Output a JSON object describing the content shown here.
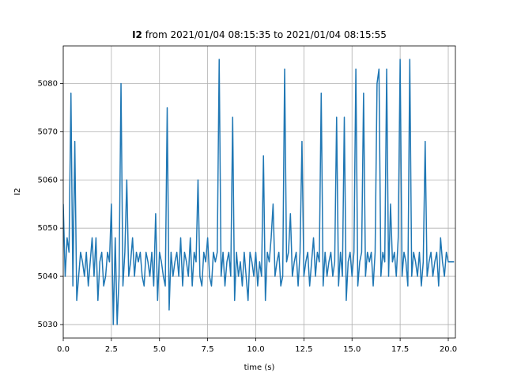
{
  "chart_data": {
    "type": "line",
    "title": {
      "bold": "I2",
      "rest": "from 2021/01/04 08:15:35 to 2021/01/04 08:15:55"
    },
    "xlabel": "time (s)",
    "ylabel": "I2",
    "xlim": [
      0,
      20.37
    ],
    "ylim": [
      5027.2,
      5087.8
    ],
    "xticks": [
      {
        "value": 0,
        "label": "0.0"
      },
      2.5,
      {
        "value": 5,
        "label": "5.0"
      },
      7.5,
      {
        "value": 10,
        "label": "10.0"
      },
      12.5,
      {
        "value": 15,
        "label": "15.0"
      },
      17.5,
      {
        "value": 20,
        "label": "20.0"
      }
    ],
    "yticks": [
      5030,
      5040,
      5050,
      5060,
      5070,
      5080
    ],
    "grid": true,
    "x": [
      0,
      0.1,
      0.2,
      0.3,
      0.4,
      0.5,
      0.6,
      0.7,
      0.8,
      0.9,
      1,
      1.1,
      1.2,
      1.3,
      1.4,
      1.5,
      1.6,
      1.7,
      1.8,
      1.9,
      2,
      2.1,
      2.2,
      2.3,
      2.4,
      2.5,
      2.6,
      2.7,
      2.8,
      2.9,
      3,
      3.1,
      3.2,
      3.3,
      3.4,
      3.5,
      3.6,
      3.7,
      3.8,
      3.9,
      4,
      4.1,
      4.2,
      4.3,
      4.4,
      4.5,
      4.6,
      4.7,
      4.8,
      4.9,
      5,
      5.1,
      5.2,
      5.3,
      5.4,
      5.5,
      5.6,
      5.7,
      5.8,
      5.9,
      6,
      6.1,
      6.2,
      6.3,
      6.4,
      6.5,
      6.6,
      6.7,
      6.8,
      6.9,
      7,
      7.1,
      7.2,
      7.3,
      7.4,
      7.5,
      7.6,
      7.7,
      7.8,
      7.9,
      8,
      8.1,
      8.2,
      8.3,
      8.4,
      8.5,
      8.6,
      8.7,
      8.8,
      8.9,
      9,
      9.1,
      9.2,
      9.3,
      9.4,
      9.5,
      9.6,
      9.7,
      9.8,
      9.9,
      10,
      10.1,
      10.2,
      10.3,
      10.4,
      10.5,
      10.6,
      10.7,
      10.8,
      10.9,
      11,
      11.1,
      11.2,
      11.3,
      11.4,
      11.5,
      11.6,
      11.7,
      11.8,
      11.9,
      12,
      12.1,
      12.2,
      12.3,
      12.4,
      12.5,
      12.6,
      12.7,
      12.8,
      12.9,
      13,
      13.1,
      13.2,
      13.3,
      13.4,
      13.5,
      13.6,
      13.7,
      13.8,
      13.9,
      14,
      14.1,
      14.2,
      14.3,
      14.4,
      14.5,
      14.6,
      14.7,
      14.8,
      14.9,
      15,
      15.1,
      15.2,
      15.3,
      15.4,
      15.5,
      15.6,
      15.7,
      15.8,
      15.9,
      16,
      16.1,
      16.2,
      16.3,
      16.4,
      16.5,
      16.6,
      16.7,
      16.8,
      16.9,
      17,
      17.1,
      17.2,
      17.3,
      17.4,
      17.5,
      17.6,
      17.7,
      17.8,
      17.9,
      18,
      18.1,
      18.2,
      18.3,
      18.4,
      18.5,
      18.6,
      18.7,
      18.8,
      18.9,
      19,
      19.1,
      19.2,
      19.3,
      19.4,
      19.5,
      19.6,
      19.7,
      19.8,
      19.9,
      20,
      20.1,
      20.2,
      20.3
    ],
    "series": [
      {
        "color": "#1f77b4",
        "values": [
          5055,
          5040,
          5048,
          5045,
          5078,
          5038,
          5068,
          5035,
          5040,
          5045,
          5043,
          5040,
          5045,
          5038,
          5043,
          5048,
          5040,
          5048,
          5035,
          5043,
          5045,
          5038,
          5040,
          5045,
          5043,
          5055,
          5030,
          5048,
          5030,
          5040,
          5080,
          5038,
          5045,
          5060,
          5040,
          5043,
          5048,
          5040,
          5045,
          5043,
          5045,
          5040,
          5038,
          5045,
          5043,
          5040,
          5045,
          5038,
          5053,
          5035,
          5045,
          5043,
          5040,
          5038,
          5075,
          5033,
          5045,
          5040,
          5043,
          5045,
          5040,
          5048,
          5038,
          5045,
          5043,
          5040,
          5048,
          5038,
          5045,
          5043,
          5060,
          5040,
          5038,
          5045,
          5043,
          5048,
          5040,
          5038,
          5045,
          5043,
          5045,
          5085,
          5040,
          5045,
          5038,
          5043,
          5045,
          5040,
          5073,
          5035,
          5045,
          5040,
          5043,
          5038,
          5045,
          5040,
          5035,
          5045,
          5043,
          5040,
          5045,
          5038,
          5043,
          5040,
          5065,
          5035,
          5045,
          5043,
          5048,
          5055,
          5040,
          5043,
          5045,
          5038,
          5040,
          5083,
          5043,
          5045,
          5053,
          5040,
          5043,
          5045,
          5038,
          5045,
          5068,
          5040,
          5043,
          5045,
          5038,
          5043,
          5048,
          5040,
          5045,
          5043,
          5078,
          5038,
          5045,
          5040,
          5043,
          5045,
          5040,
          5043,
          5073,
          5038,
          5045,
          5040,
          5073,
          5035,
          5043,
          5045,
          5040,
          5045,
          5083,
          5038,
          5043,
          5045,
          5078,
          5040,
          5045,
          5043,
          5045,
          5038,
          5045,
          5080,
          5083,
          5040,
          5045,
          5043,
          5083,
          5040,
          5055,
          5043,
          5045,
          5040,
          5048,
          5085,
          5040,
          5045,
          5043,
          5038,
          5085,
          5040,
          5045,
          5043,
          5040,
          5045,
          5038,
          5043,
          5068,
          5040,
          5043,
          5045,
          5040,
          5043,
          5045,
          5038,
          5048,
          5043,
          5040,
          5045,
          5043,
          5043,
          5043,
          5043
        ]
      }
    ]
  }
}
